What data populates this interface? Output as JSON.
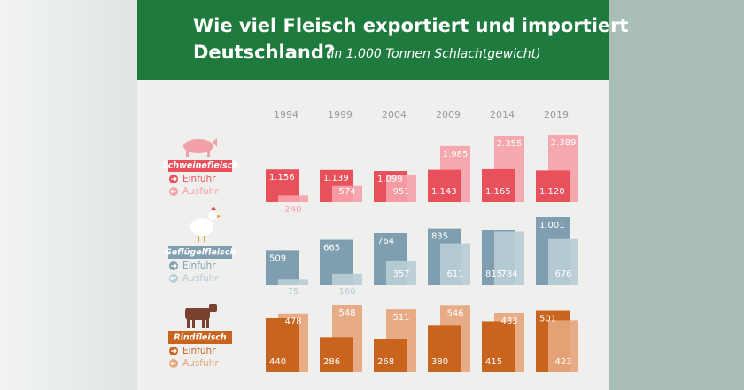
{
  "chart_data": {
    "type": "bar",
    "title_lines": [
      "Wie viel Fleisch exportiert und importiert",
      "Deutschland?"
    ],
    "subtitle": "(in 1.000 Tonnen Schlachtgewicht)",
    "categories": [
      "1994",
      "1999",
      "2004",
      "2009",
      "2014",
      "2019"
    ],
    "groups": [
      {
        "name": "Schweinefleisch",
        "color": "#e8505b",
        "series": [
          {
            "name": "Einfuhr",
            "color": "#e8505b",
            "values": [
              1156,
              1139,
              1099,
              1143,
              1165,
              1120
            ],
            "value_labels": [
              "1.156",
              "1.139",
              "1.099",
              "1.143",
              "1.165",
              "1.120"
            ]
          },
          {
            "name": "Ausfuhr",
            "color": "#f6a2a9",
            "values": [
              240,
              574,
              951,
              1985,
              2355,
              2389
            ],
            "value_labels": [
              "240",
              "574",
              "951",
              "1.985",
              "2.355",
              "2.389"
            ]
          }
        ]
      },
      {
        "name": "Geflügelfleisch",
        "color": "#7f9fb0",
        "series": [
          {
            "name": "Einfuhr",
            "color": "#7f9fb0",
            "values": [
              509,
              665,
              764,
              835,
              815,
              1001
            ],
            "value_labels": [
              "509",
              "665",
              "764",
              "835",
              "815",
              "1.001"
            ]
          },
          {
            "name": "Ausfuhr",
            "color": "#b9cdd6",
            "values": [
              75,
              160,
              357,
              611,
              784,
              676
            ],
            "value_labels": [
              "75",
              "160",
              "357",
              "611",
              "784",
              "676"
            ]
          }
        ]
      },
      {
        "name": "Rindfleisch",
        "color": "#c8641e",
        "series": [
          {
            "name": "Einfuhr",
            "color": "#c8641e",
            "values": [
              440,
              286,
              268,
              380,
              415,
              501
            ],
            "value_labels": [
              "440",
              "286",
              "268",
              "380",
              "415",
              "501"
            ]
          },
          {
            "name": "Ausfuhr",
            "color": "#e6a67c",
            "values": [
              478,
              548,
              511,
              546,
              483,
              423
            ],
            "value_labels": [
              "478",
              "548",
              "511",
              "546",
              "483",
              "423"
            ]
          }
        ]
      }
    ]
  }
}
